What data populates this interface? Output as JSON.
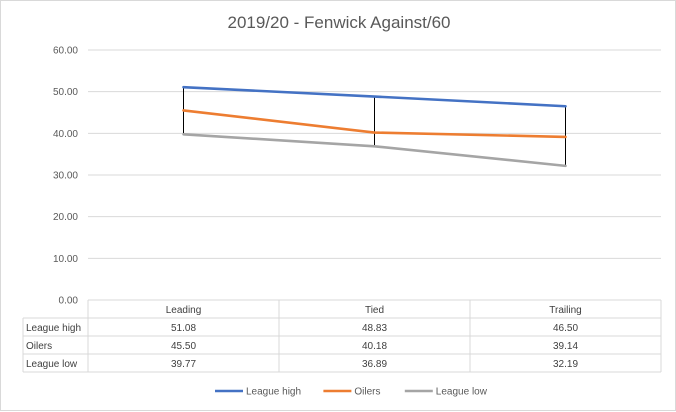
{
  "chart_data": {
    "type": "line",
    "title": "2019/20 - Fenwick Against/60",
    "categories": [
      "Leading",
      "Tied",
      "Trailing"
    ],
    "ylim": [
      0,
      60
    ],
    "y_ticks": [
      "0.00",
      "10.00",
      "20.00",
      "30.00",
      "40.00",
      "50.00",
      "60.00"
    ],
    "grid": true,
    "high_low_lines": true,
    "legend_position": "bottom",
    "series": [
      {
        "name": "League high",
        "color": "#4472c4",
        "values": [
          51.08,
          48.83,
          46.5
        ],
        "labels": [
          "51.08",
          "48.83",
          "46.50"
        ]
      },
      {
        "name": "Oilers",
        "color": "#ed7d31",
        "values": [
          45.5,
          40.18,
          39.14
        ],
        "labels": [
          "45.50",
          "40.18",
          "39.14"
        ]
      },
      {
        "name": "League low",
        "color": "#a5a5a5",
        "values": [
          39.77,
          36.89,
          32.19
        ],
        "labels": [
          "39.77",
          "36.89",
          "32.19"
        ]
      }
    ]
  }
}
